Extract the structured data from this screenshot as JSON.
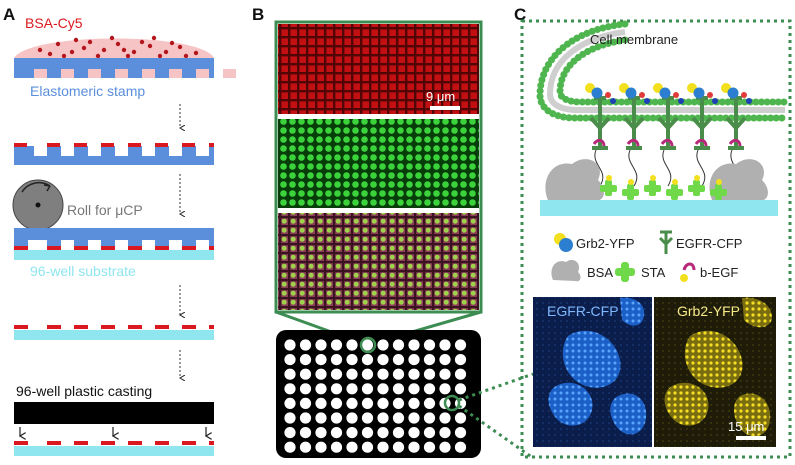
{
  "panels": {
    "a": {
      "letter": "A",
      "ink_label": "BSA-Cy5",
      "stamp_label": "Elastomeric stamp",
      "roll_label": "Roll for μCP",
      "substrate_label": "96-well substrate",
      "casting_label": "96-well plastic casting"
    },
    "b": {
      "letter": "B",
      "scale_label": "9 μm"
    },
    "c": {
      "letter": "C",
      "membrane_label": "Cell membrane",
      "legend": {
        "grb2": "Grb2-YFP",
        "egfr": "EGFR-CFP",
        "bsa": "BSA",
        "sta": "STA",
        "begf": "b-EGF"
      },
      "micrograph_left_label": "EGFR-CFP",
      "micrograph_right_label": "Grb2-YFP",
      "micrograph_scale_label": "15 μm"
    }
  },
  "colors": {
    "ink_red": "#d9191f",
    "stamp_blue": "#5b8fdc",
    "substrate_cyan": "#8fe6ef",
    "dot_green": "#46ad46",
    "frame_green": "#3d8c52",
    "grb2_blue": "#2c7fd0",
    "yfp_yellow": "#f2df1e"
  }
}
